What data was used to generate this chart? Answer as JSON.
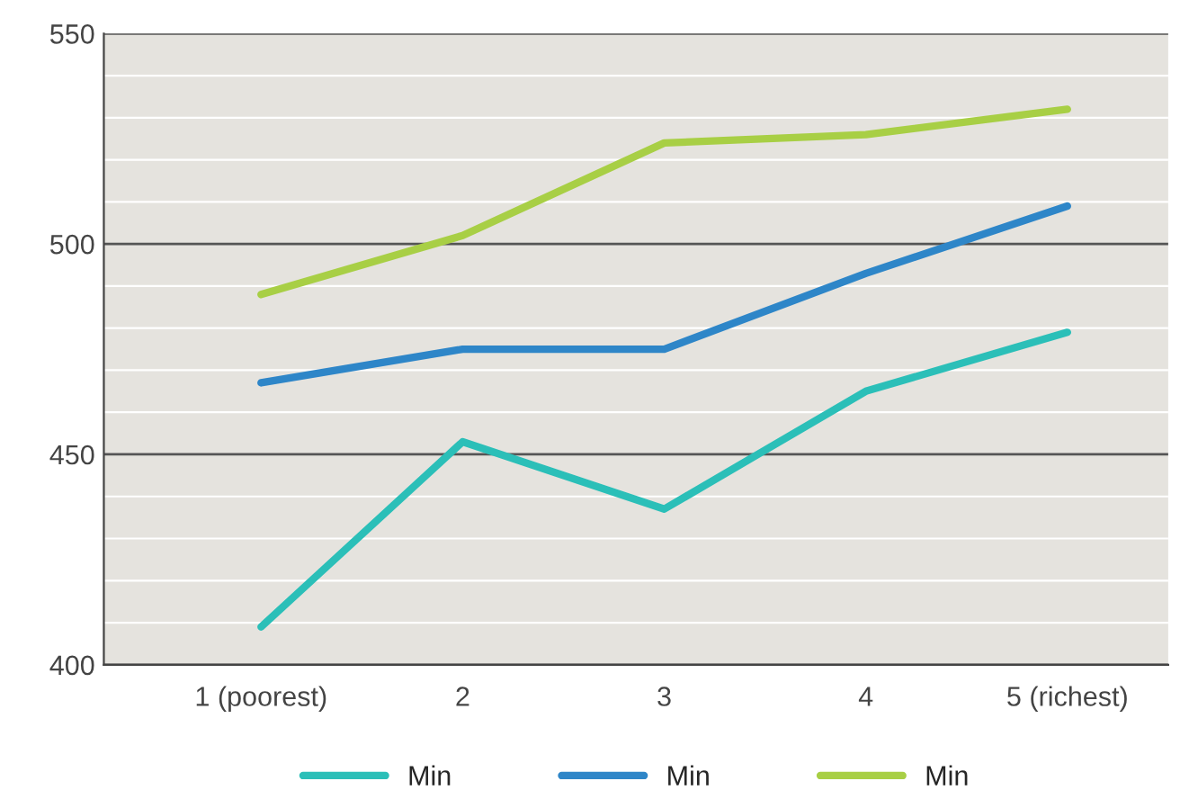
{
  "chart_data": {
    "type": "line",
    "categories": [
      "1 (poorest)",
      "2",
      "3",
      "4",
      "5 (richest)"
    ],
    "series": [
      {
        "name": "Min",
        "color": "#2bbfb8",
        "values": [
          409,
          453,
          437,
          465,
          479
        ]
      },
      {
        "name": "Min",
        "color": "#2e86c8",
        "values": [
          467,
          475,
          475,
          493,
          509
        ]
      },
      {
        "name": "Min",
        "color": "#a8cf45",
        "values": [
          488,
          502,
          524,
          526,
          532
        ]
      }
    ],
    "ylim": [
      400,
      550
    ],
    "yticks": [
      400,
      {
        "value": 410,
        "label": null
      },
      {
        "value": 420,
        "label": null
      },
      {
        "value": 430,
        "label": null
      },
      {
        "value": 440,
        "label": null
      },
      450,
      {
        "value": 460,
        "label": null
      },
      {
        "value": 470,
        "label": null
      },
      {
        "value": 480,
        "label": null
      },
      {
        "value": 490,
        "label": null
      },
      500,
      {
        "value": 510,
        "label": null
      },
      {
        "value": 520,
        "label": null
      },
      {
        "value": 530,
        "label": null
      },
      {
        "value": 540,
        "label": null
      },
      550
    ],
    "grid": "y",
    "legend": "bottom",
    "marker": "none",
    "line_style": "solid"
  }
}
